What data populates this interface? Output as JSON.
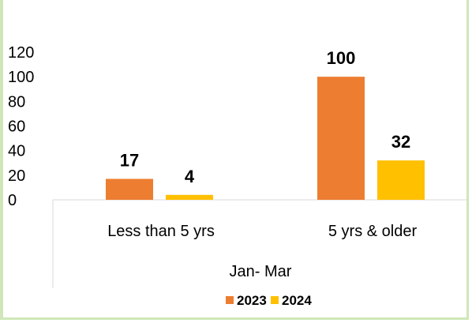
{
  "chart_data": {
    "type": "bar",
    "title": "",
    "xlabel": "Jan- Mar",
    "ylabel": "",
    "categories": [
      "Less than 5 yrs",
      "5 yrs & older"
    ],
    "series": [
      {
        "name": "2023",
        "color": "#ED7D31",
        "values": [
          17,
          100
        ]
      },
      {
        "name": "2024",
        "color": "#FFC000",
        "values": [
          4,
          32
        ]
      }
    ],
    "yticks": [
      0,
      20,
      40,
      60,
      80,
      100,
      120
    ],
    "ylim": [
      0,
      120
    ],
    "grid": false,
    "legend": "bottom-center"
  }
}
